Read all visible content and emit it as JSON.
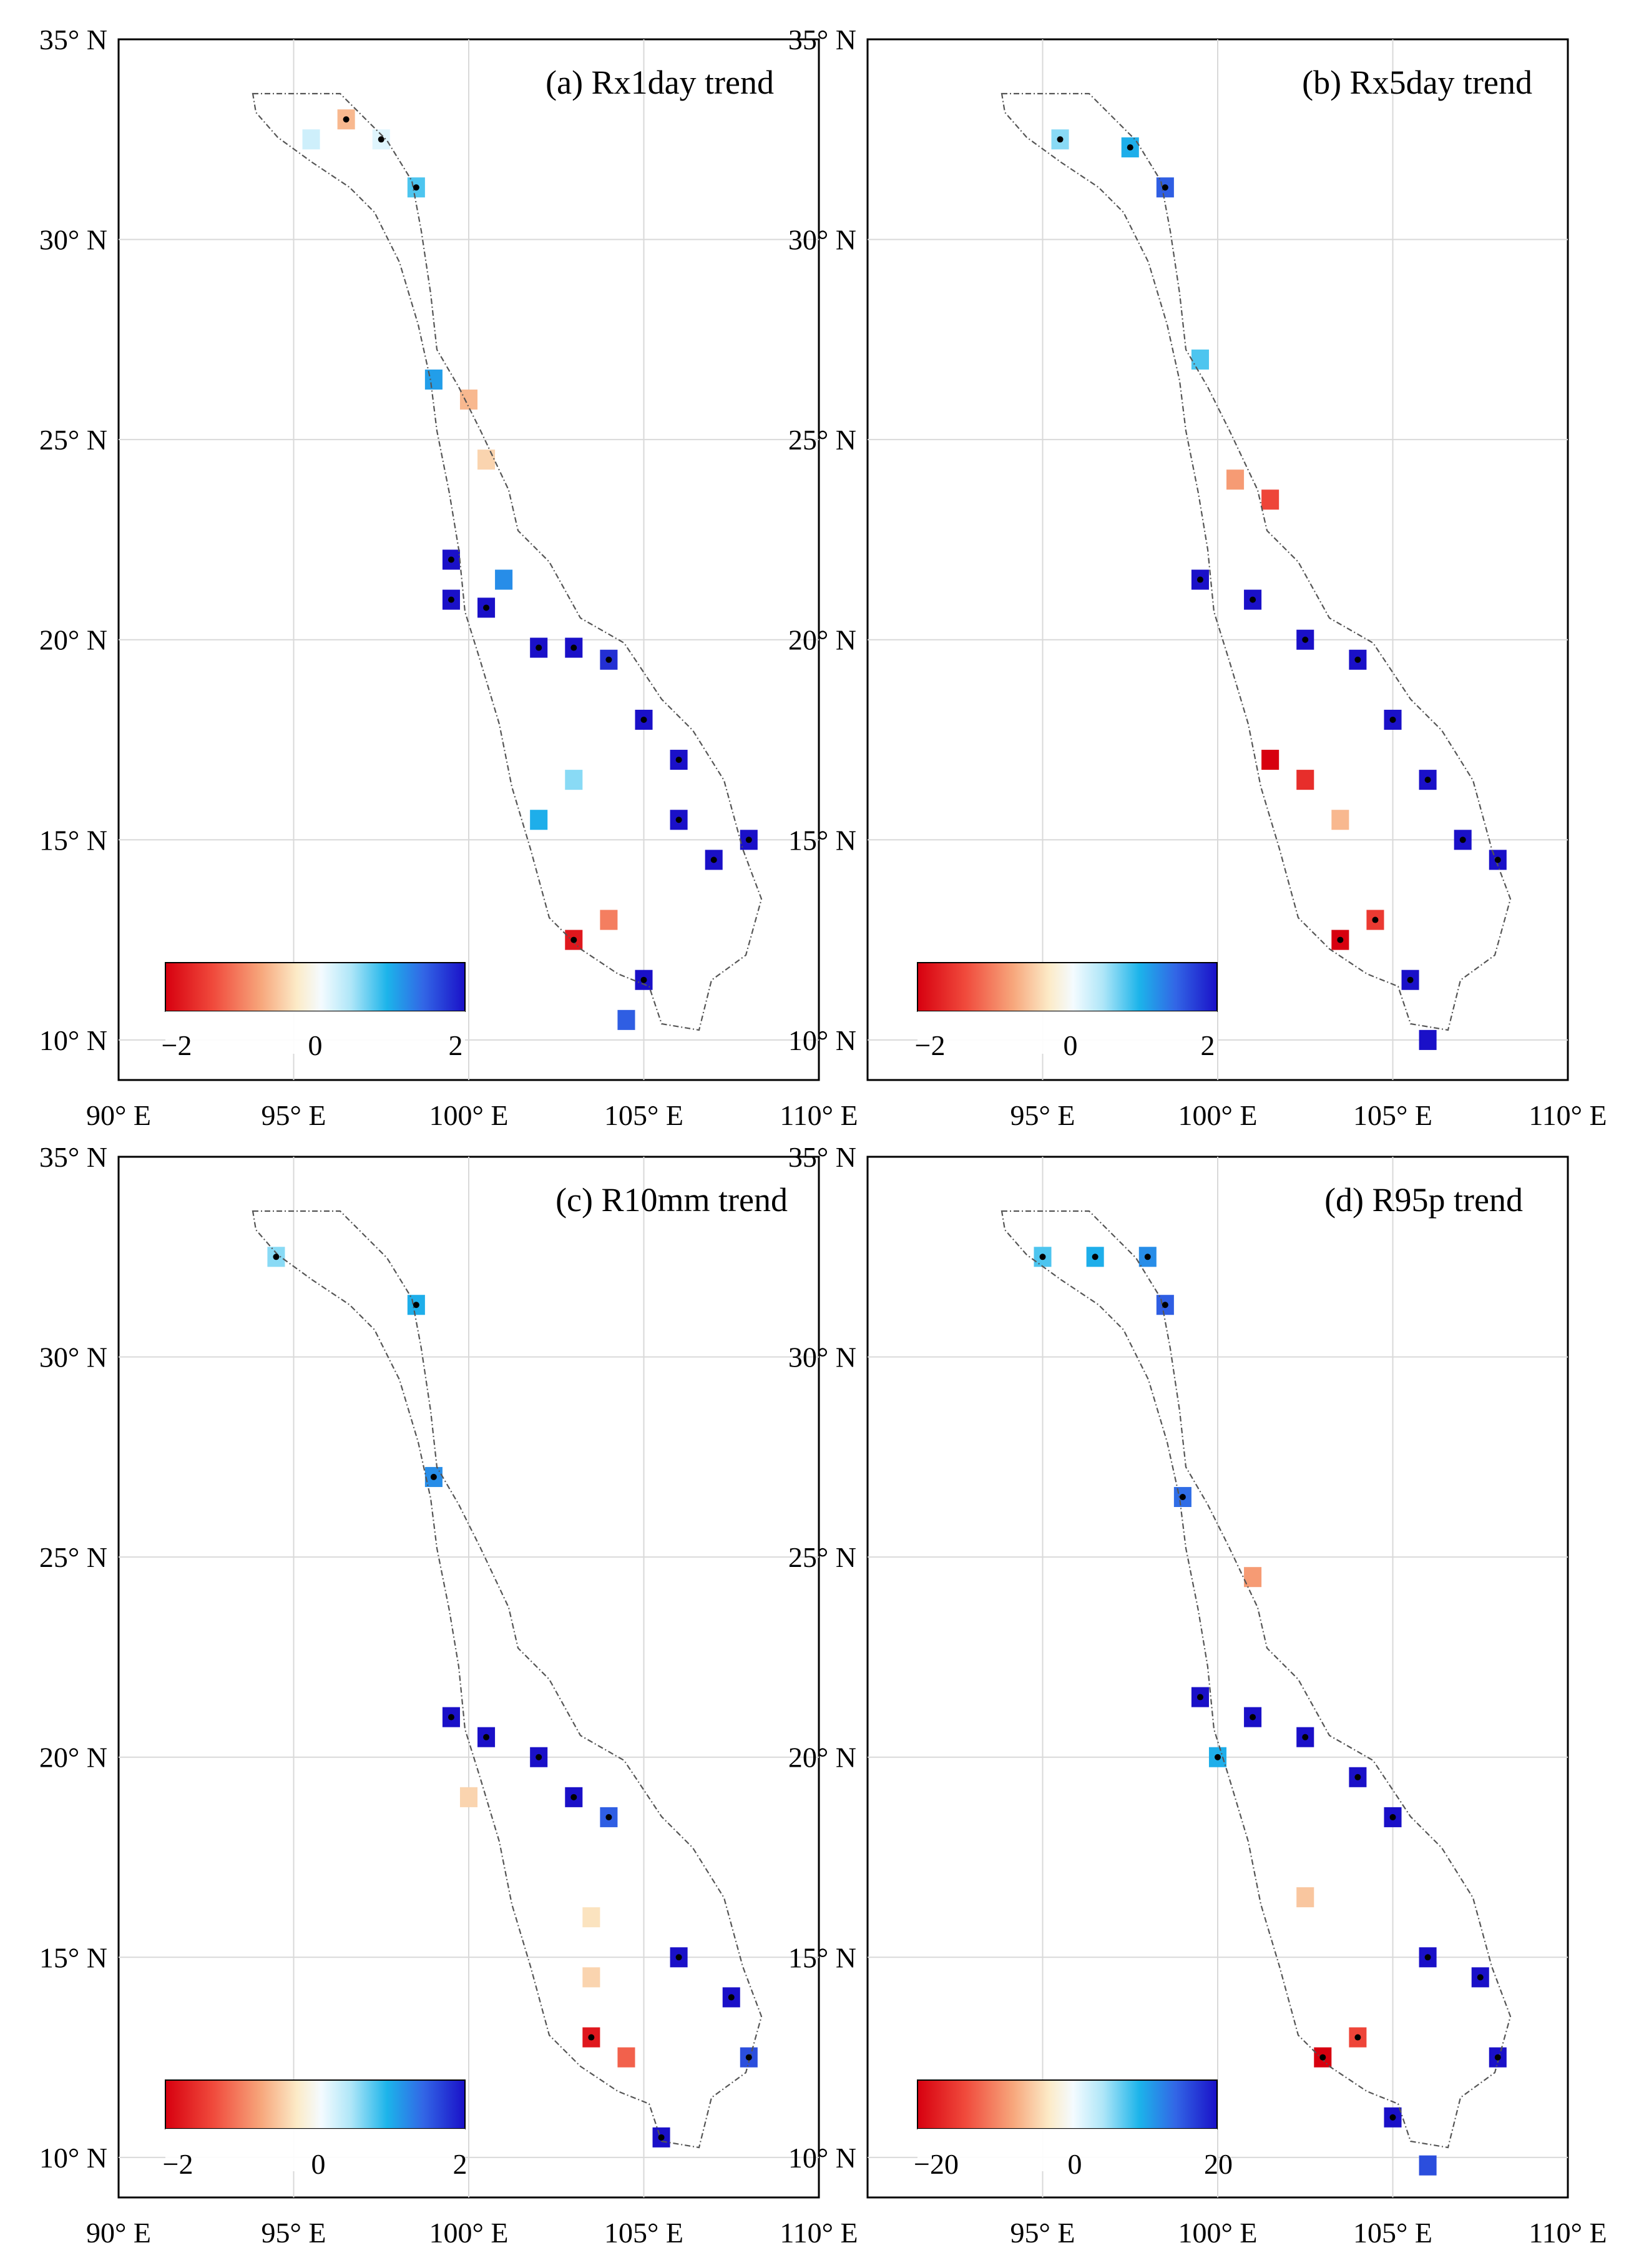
{
  "chart_data": [
    {
      "type": "heatmap",
      "panel": "a",
      "title": "(a) Rx1day trend",
      "xlim": [
        90,
        110
      ],
      "ylim": [
        9,
        35
      ],
      "xticks": [
        90,
        95,
        100,
        105,
        110
      ],
      "xticklabels": [
        "90° E",
        "95° E",
        "100° E",
        "105° E",
        "110° E"
      ],
      "yticks": [
        10,
        15,
        20,
        25,
        30,
        35
      ],
      "yticklabels": [
        "10° N",
        "15° N",
        "20° N",
        "25° N",
        "30° N",
        "35° N"
      ],
      "grid": true,
      "colorbar": {
        "range": [
          -2,
          2
        ],
        "ticks": [
          -2,
          0,
          2
        ],
        "ticklabels": [
          "−2",
          "0",
          "2"
        ],
        "location": "bottom-left"
      },
      "cells_lon_lat_value_sig": [
        [
          95.5,
          32.5,
          0.3,
          0
        ],
        [
          96.5,
          33.0,
          -0.6,
          1
        ],
        [
          97.5,
          32.5,
          0.2,
          1
        ],
        [
          98.5,
          31.3,
          0.8,
          1
        ],
        [
          99.0,
          26.5,
          1.1,
          0
        ],
        [
          100.0,
          26.0,
          -0.6,
          0
        ],
        [
          100.5,
          24.5,
          -0.4,
          0
        ],
        [
          99.5,
          22.0,
          2.0,
          1
        ],
        [
          99.5,
          21.0,
          2.0,
          1
        ],
        [
          100.5,
          20.8,
          2.0,
          1
        ],
        [
          101.0,
          21.5,
          1.2,
          0
        ],
        [
          102.0,
          19.8,
          2.0,
          1
        ],
        [
          103.0,
          19.8,
          2.0,
          1
        ],
        [
          104.0,
          19.5,
          1.8,
          1
        ],
        [
          103.0,
          16.5,
          0.6,
          0
        ],
        [
          105.0,
          18.0,
          2.0,
          1
        ],
        [
          106.0,
          17.0,
          2.0,
          1
        ],
        [
          106.0,
          15.5,
          2.0,
          1
        ],
        [
          107.0,
          14.5,
          2.0,
          1
        ],
        [
          108.0,
          15.0,
          2.0,
          1
        ],
        [
          103.0,
          12.5,
          -1.8,
          1
        ],
        [
          104.0,
          13.0,
          -1.0,
          0
        ],
        [
          105.0,
          11.5,
          2.0,
          1
        ],
        [
          104.5,
          10.5,
          1.5,
          0
        ],
        [
          102.0,
          15.5,
          1.0,
          0
        ]
      ]
    },
    {
      "type": "heatmap",
      "panel": "b",
      "title": "(b) Rx5day trend",
      "xlim": [
        90,
        110
      ],
      "ylim": [
        9,
        35
      ],
      "xticks": [
        90,
        95,
        100,
        105,
        110
      ],
      "xticklabels": [
        "90° E",
        "95° E",
        "100° E",
        "105° E",
        "110° E"
      ],
      "yticks": [
        10,
        15,
        20,
        25,
        30,
        35
      ],
      "yticklabels": [
        "10° N",
        "15° N",
        "20° N",
        "25° N",
        "30° N",
        "35° N"
      ],
      "grid": true,
      "colorbar": {
        "range": [
          -2,
          2
        ],
        "ticks": [
          -2,
          0,
          2
        ],
        "ticklabels": [
          "−2",
          "0",
          "2"
        ],
        "location": "bottom-left"
      },
      "cells_lon_lat_value_sig": [
        [
          95.5,
          32.5,
          0.6,
          1
        ],
        [
          97.5,
          32.3,
          1.0,
          1
        ],
        [
          98.5,
          31.3,
          1.5,
          1
        ],
        [
          99.5,
          27.0,
          0.8,
          0
        ],
        [
          100.5,
          24.0,
          -0.8,
          0
        ],
        [
          101.5,
          23.5,
          -1.4,
          0
        ],
        [
          99.5,
          21.5,
          2.0,
          1
        ],
        [
          101.0,
          21.0,
          2.0,
          1
        ],
        [
          102.5,
          20.0,
          2.0,
          1
        ],
        [
          104.0,
          19.5,
          2.0,
          1
        ],
        [
          105.0,
          18.0,
          2.0,
          1
        ],
        [
          106.0,
          16.5,
          2.0,
          1
        ],
        [
          107.0,
          15.0,
          2.0,
          1
        ],
        [
          108.0,
          14.5,
          2.0,
          1
        ],
        [
          101.5,
          17.0,
          -2.0,
          0
        ],
        [
          102.5,
          16.5,
          -1.6,
          0
        ],
        [
          103.5,
          15.5,
          -0.6,
          0
        ],
        [
          103.5,
          12.5,
          -2.0,
          1
        ],
        [
          104.5,
          13.0,
          -1.5,
          1
        ],
        [
          105.5,
          11.5,
          2.0,
          1
        ],
        [
          106.0,
          10.0,
          2.0,
          0
        ]
      ]
    },
    {
      "type": "heatmap",
      "panel": "c",
      "title": "(c) R10mm trend",
      "xlim": [
        90,
        110
      ],
      "ylim": [
        9,
        35
      ],
      "xticks": [
        90,
        95,
        100,
        105,
        110
      ],
      "xticklabels": [
        "90° E",
        "95° E",
        "100° E",
        "105° E",
        "110° E"
      ],
      "yticks": [
        10,
        15,
        20,
        25,
        30,
        35
      ],
      "yticklabels": [
        "10° N",
        "15° N",
        "20° N",
        "25° N",
        "30° N",
        "35° N"
      ],
      "grid": true,
      "colorbar": {
        "range": [
          -2,
          2
        ],
        "ticks": [
          -2,
          0,
          2
        ],
        "ticklabels": [
          "−2",
          "0",
          "2"
        ],
        "location": "bottom-left"
      },
      "cells_lon_lat_value_sig": [
        [
          94.5,
          32.5,
          0.6,
          1
        ],
        [
          98.5,
          31.3,
          1.0,
          1
        ],
        [
          99.0,
          27.0,
          1.2,
          1
        ],
        [
          99.5,
          21.0,
          2.0,
          1
        ],
        [
          100.5,
          20.5,
          2.0,
          1
        ],
        [
          102.0,
          20.0,
          2.0,
          1
        ],
        [
          103.0,
          19.0,
          2.0,
          1
        ],
        [
          104.0,
          18.5,
          1.5,
          1
        ],
        [
          103.5,
          16.0,
          -0.3,
          0
        ],
        [
          103.5,
          14.5,
          -0.4,
          0
        ],
        [
          106.0,
          15.0,
          2.0,
          1
        ],
        [
          107.5,
          14.0,
          2.0,
          1
        ],
        [
          108.0,
          12.5,
          1.6,
          1
        ],
        [
          103.5,
          13.0,
          -1.8,
          1
        ],
        [
          104.5,
          12.5,
          -1.2,
          0
        ],
        [
          100.0,
          19.0,
          -0.4,
          0
        ],
        [
          105.5,
          10.5,
          2.0,
          1
        ]
      ]
    },
    {
      "type": "heatmap",
      "panel": "d",
      "title": "(d) R95p trend",
      "xlim": [
        90,
        110
      ],
      "ylim": [
        9,
        35
      ],
      "xticks": [
        90,
        95,
        100,
        105,
        110
      ],
      "xticklabels": [
        "90° E",
        "95° E",
        "100° E",
        "105° E",
        "110° E"
      ],
      "yticks": [
        10,
        15,
        20,
        25,
        30,
        35
      ],
      "yticklabels": [
        "10° N",
        "15° N",
        "20° N",
        "25° N",
        "30° N",
        "35° N"
      ],
      "grid": true,
      "colorbar": {
        "range": [
          -20,
          20
        ],
        "ticks": [
          -20,
          0,
          20
        ],
        "ticklabels": [
          "−20",
          "0",
          "20"
        ],
        "location": "bottom-left"
      },
      "cells_lon_lat_value_sig": [
        [
          95.0,
          32.5,
          8,
          1
        ],
        [
          96.5,
          32.5,
          10,
          1
        ],
        [
          98.0,
          32.5,
          12,
          1
        ],
        [
          98.5,
          31.3,
          15,
          1
        ],
        [
          99.0,
          26.5,
          14,
          1
        ],
        [
          101.0,
          24.5,
          -8,
          0
        ],
        [
          99.5,
          21.5,
          20,
          1
        ],
        [
          101.0,
          21.0,
          20,
          1
        ],
        [
          102.5,
          20.5,
          20,
          1
        ],
        [
          104.0,
          19.5,
          20,
          1
        ],
        [
          105.0,
          18.5,
          20,
          1
        ],
        [
          102.5,
          16.5,
          -5,
          0
        ],
        [
          106.0,
          15.0,
          20,
          1
        ],
        [
          107.5,
          14.5,
          20,
          1
        ],
        [
          108.0,
          12.5,
          20,
          1
        ],
        [
          103.0,
          12.5,
          -20,
          1
        ],
        [
          104.0,
          13.0,
          -14,
          1
        ],
        [
          105.0,
          11.0,
          20,
          1
        ],
        [
          100.0,
          20.0,
          10,
          1
        ],
        [
          106.0,
          9.8,
          16,
          0
        ]
      ]
    }
  ]
}
